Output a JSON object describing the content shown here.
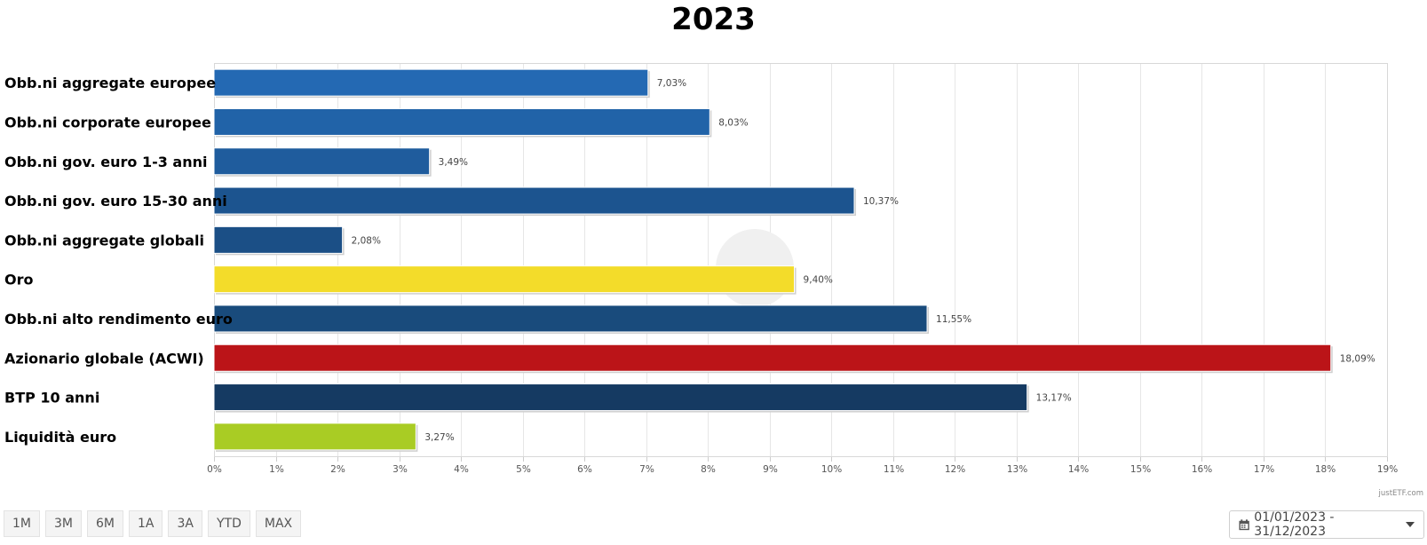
{
  "chart_data": {
    "type": "bar",
    "orientation": "horizontal",
    "title": "2023",
    "categories": [
      "Obb.ni aggregate europee",
      "Obb.ni corporate europee",
      "Obb.ni gov. euro 1-3 anni",
      "Obb.ni gov. euro 15-30 anni",
      "Obb.ni aggregate globali",
      "Oro",
      "Obb.ni alto rendimento euro",
      "Azionario globale (ACWI)",
      "BTP 10 anni",
      "Liquidità euro"
    ],
    "values": [
      7.03,
      8.03,
      3.49,
      10.37,
      2.08,
      9.4,
      11.55,
      18.09,
      13.17,
      3.27
    ],
    "value_labels": [
      "7,03%",
      "8,03%",
      "3,49%",
      "10,37%",
      "2,08%",
      "9,40%",
      "11,55%",
      "18,09%",
      "13,17%",
      "3,27%"
    ],
    "colors": [
      "#2469b3",
      "#2163a8",
      "#1f5c9d",
      "#1c548f",
      "#1b4f86",
      "#f3dc2a",
      "#194b7c",
      "#bb1418",
      "#153a62",
      "#a9cc24"
    ],
    "xlim": [
      0,
      19
    ],
    "x_ticks": [
      "0%",
      "1%",
      "2%",
      "3%",
      "4%",
      "5%",
      "6%",
      "7%",
      "8%",
      "9%",
      "10%",
      "11%",
      "12%",
      "13%",
      "14%",
      "15%",
      "16%",
      "17%",
      "18%",
      "19%"
    ],
    "grid": true,
    "xlabel": "",
    "ylabel": "",
    "credit": "justETF.com"
  },
  "controls": {
    "range_buttons": [
      "1M",
      "3M",
      "6M",
      "1A",
      "3A",
      "YTD",
      "MAX"
    ],
    "date_range": "01/01/2023 - 31/12/2023"
  }
}
